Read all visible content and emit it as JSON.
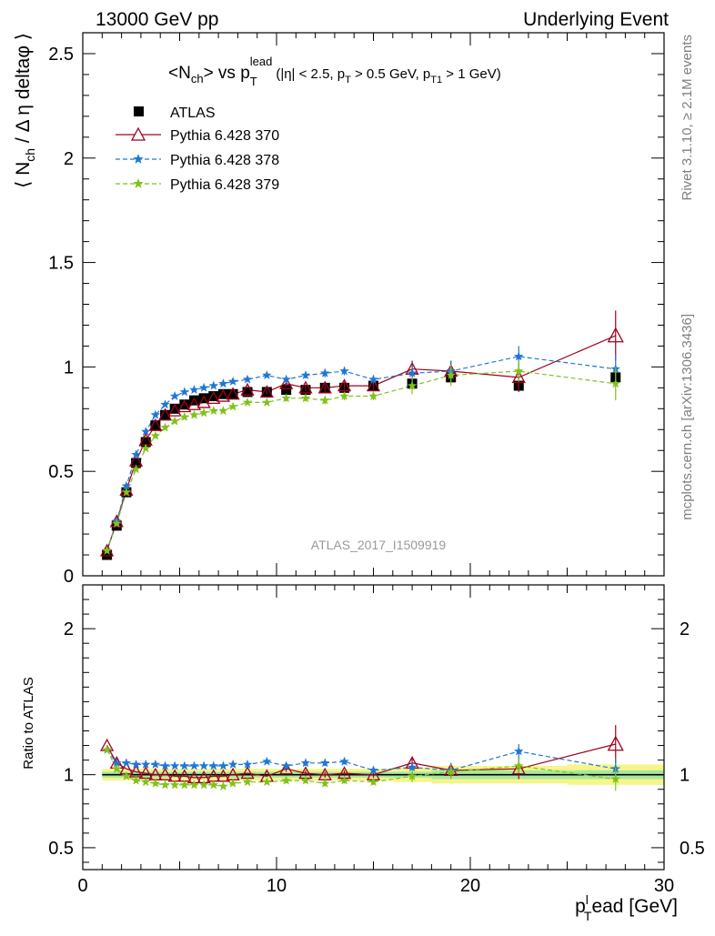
{
  "header": {
    "left": "13000 GeV pp",
    "right": "Underlying Event"
  },
  "side_text": {
    "rivet": "Rivet 3.1.10, ≥ 2.1M events",
    "mcplots": "mcplots.cern.ch [arXiv:1306.3436]"
  },
  "analysis_label": "ATLAS_2017_I1509919",
  "colors": {
    "atlas": "#000000",
    "p370": "#a0001e",
    "p378": "#1f77d4",
    "p379": "#80c21a",
    "band_inner": "#a6e8a0",
    "band_outer": "#f5f58a"
  },
  "chart_data": [
    {
      "panel": "main",
      "type": "scatter",
      "title_parts": {
        "lhs": "<N",
        "lhs_sub": "ch",
        "mid": "> vs p",
        "mid_sup": "lead",
        "mid_sub": "T",
        "cuts_a": "(|η| < 2.5, p",
        "cuts_sub1": "T",
        "cuts_b": " > 0.5 GeV, p",
        "cuts_sub2": "T1",
        "cuts_c": " > 1 GeV)"
      },
      "ylabel_parts": {
        "a": "⟨ N",
        "sub": "ch",
        "b": " / Δ η deltaφ ⟩"
      },
      "xlim": [
        0,
        30
      ],
      "ylim": [
        0,
        2.6
      ],
      "yticks": [
        0,
        0.5,
        1,
        1.5,
        2,
        2.5
      ],
      "ytick_labels": [
        "0",
        "0.5",
        "1",
        "1.5",
        "2",
        "2.5"
      ],
      "legend_position": "top-left",
      "series": [
        {
          "name": "ATLAS",
          "marker": "square",
          "x": [
            1.25,
            1.75,
            2.25,
            2.75,
            3.25,
            3.75,
            4.25,
            4.75,
            5.25,
            5.75,
            6.25,
            6.75,
            7.25,
            7.75,
            8.5,
            9.5,
            10.5,
            11.5,
            12.5,
            13.5,
            15.0,
            17.0,
            19.0,
            22.5,
            27.5
          ],
          "y": [
            0.1,
            0.24,
            0.4,
            0.54,
            0.64,
            0.72,
            0.77,
            0.8,
            0.82,
            0.84,
            0.85,
            0.86,
            0.87,
            0.87,
            0.88,
            0.88,
            0.89,
            0.89,
            0.9,
            0.9,
            0.91,
            0.92,
            0.95,
            0.91,
            0.95
          ]
        },
        {
          "name": "Pythia 6.428 370",
          "marker": "triangle",
          "x": [
            1.25,
            1.75,
            2.25,
            2.75,
            3.25,
            3.75,
            4.25,
            4.75,
            5.25,
            5.75,
            6.25,
            6.75,
            7.25,
            7.75,
            8.5,
            9.5,
            10.5,
            11.5,
            12.5,
            13.5,
            15.0,
            17.0,
            19.0,
            22.5,
            27.5
          ],
          "y": [
            0.12,
            0.26,
            0.41,
            0.55,
            0.65,
            0.72,
            0.77,
            0.79,
            0.81,
            0.82,
            0.83,
            0.85,
            0.86,
            0.87,
            0.89,
            0.88,
            0.92,
            0.9,
            0.9,
            0.91,
            0.91,
            0.99,
            0.98,
            0.95,
            1.15
          ],
          "err": [
            0.005,
            0.005,
            0.005,
            0.005,
            0.005,
            0.005,
            0.005,
            0.005,
            0.005,
            0.005,
            0.005,
            0.005,
            0.006,
            0.006,
            0.008,
            0.01,
            0.015,
            0.015,
            0.02,
            0.02,
            0.02,
            0.04,
            0.05,
            0.07,
            0.12
          ]
        },
        {
          "name": "Pythia 6.428 378",
          "marker": "star",
          "x": [
            1.25,
            1.75,
            2.25,
            2.75,
            3.25,
            3.75,
            4.25,
            4.75,
            5.25,
            5.75,
            6.25,
            6.75,
            7.25,
            7.75,
            8.5,
            9.5,
            10.5,
            11.5,
            12.5,
            13.5,
            15.0,
            17.0,
            19.0,
            22.5,
            27.5
          ],
          "y": [
            0.12,
            0.26,
            0.43,
            0.58,
            0.69,
            0.77,
            0.82,
            0.86,
            0.88,
            0.89,
            0.9,
            0.91,
            0.92,
            0.93,
            0.94,
            0.96,
            0.94,
            0.96,
            0.97,
            0.98,
            0.94,
            0.97,
            0.98,
            1.05,
            0.99
          ],
          "err": [
            0.005,
            0.005,
            0.005,
            0.005,
            0.005,
            0.005,
            0.005,
            0.005,
            0.005,
            0.005,
            0.006,
            0.006,
            0.006,
            0.006,
            0.008,
            0.01,
            0.015,
            0.015,
            0.02,
            0.02,
            0.02,
            0.04,
            0.05,
            0.05,
            0.07
          ]
        },
        {
          "name": "Pythia 6.428 379",
          "marker": "star",
          "x": [
            1.25,
            1.75,
            2.25,
            2.75,
            3.25,
            3.75,
            4.25,
            4.75,
            5.25,
            5.75,
            6.25,
            6.75,
            7.25,
            7.75,
            8.5,
            9.5,
            10.5,
            11.5,
            12.5,
            13.5,
            15.0,
            17.0,
            19.0,
            22.5,
            27.5
          ],
          "y": [
            0.12,
            0.25,
            0.4,
            0.51,
            0.61,
            0.67,
            0.71,
            0.74,
            0.76,
            0.77,
            0.78,
            0.79,
            0.79,
            0.81,
            0.83,
            0.83,
            0.85,
            0.85,
            0.84,
            0.86,
            0.86,
            0.91,
            0.96,
            0.98,
            0.92
          ],
          "err": [
            0.005,
            0.005,
            0.005,
            0.005,
            0.005,
            0.005,
            0.005,
            0.005,
            0.005,
            0.005,
            0.006,
            0.006,
            0.006,
            0.006,
            0.008,
            0.01,
            0.015,
            0.015,
            0.02,
            0.02,
            0.02,
            0.04,
            0.05,
            0.05,
            0.08
          ]
        }
      ]
    },
    {
      "panel": "ratio",
      "type": "line",
      "ylabel": "Ratio to ATLAS",
      "xlabel_parts": {
        "a": "p",
        "sup": "l",
        "sub": "T",
        "b": "ead [GeV]"
      },
      "xlim": [
        0,
        30
      ],
      "ylim": [
        0.35,
        2.3
      ],
      "xticks": [
        0,
        10,
        20,
        30
      ],
      "xtick_labels": [
        "0",
        "10",
        "20",
        "30"
      ],
      "yticks": [
        0.5,
        1,
        2
      ],
      "ytick_labels": [
        "0.5",
        "1",
        "2"
      ],
      "bins": [
        1.0,
        1.5,
        2.0,
        2.5,
        3.0,
        3.5,
        4.0,
        4.5,
        5.0,
        5.5,
        6.0,
        6.5,
        7.0,
        7.5,
        8.0,
        9.0,
        10.0,
        11.0,
        12.0,
        13.0,
        14.0,
        16.0,
        18.0,
        20.0,
        25.0,
        30.0
      ],
      "band_inner_halfwidth": [
        0.02,
        0.02,
        0.02,
        0.02,
        0.02,
        0.02,
        0.02,
        0.02,
        0.02,
        0.02,
        0.02,
        0.02,
        0.02,
        0.02,
        0.02,
        0.02,
        0.02,
        0.02,
        0.02,
        0.02,
        0.02,
        0.02,
        0.03,
        0.03,
        0.03
      ],
      "band_outer_halfwidth": [
        0.04,
        0.04,
        0.04,
        0.04,
        0.04,
        0.04,
        0.04,
        0.04,
        0.04,
        0.04,
        0.04,
        0.04,
        0.04,
        0.04,
        0.04,
        0.04,
        0.04,
        0.04,
        0.04,
        0.04,
        0.04,
        0.05,
        0.06,
        0.06,
        0.07
      ],
      "series": [
        {
          "name": "Pythia 6.428 370",
          "x": [
            1.25,
            1.75,
            2.25,
            2.75,
            3.25,
            3.75,
            4.25,
            4.75,
            5.25,
            5.75,
            6.25,
            6.75,
            7.25,
            7.75,
            8.5,
            9.5,
            10.5,
            11.5,
            12.5,
            13.5,
            15.0,
            17.0,
            19.0,
            22.5,
            27.5
          ],
          "y": [
            1.2,
            1.08,
            1.04,
            1.02,
            1.01,
            1.0,
            1.0,
            0.99,
            0.99,
            0.98,
            0.98,
            0.99,
            0.99,
            1.0,
            1.01,
            0.99,
            1.04,
            1.01,
            1.0,
            1.01,
            1.0,
            1.08,
            1.03,
            1.04,
            1.21
          ],
          "err": [
            0.01,
            0.01,
            0.01,
            0.01,
            0.01,
            0.01,
            0.01,
            0.01,
            0.01,
            0.01,
            0.01,
            0.01,
            0.01,
            0.01,
            0.01,
            0.01,
            0.02,
            0.02,
            0.02,
            0.02,
            0.02,
            0.04,
            0.05,
            0.07,
            0.13
          ]
        },
        {
          "name": "Pythia 6.428 378",
          "x": [
            1.25,
            1.75,
            2.25,
            2.75,
            3.25,
            3.75,
            4.25,
            4.75,
            5.25,
            5.75,
            6.25,
            6.75,
            7.25,
            7.75,
            8.5,
            9.5,
            10.5,
            11.5,
            12.5,
            13.5,
            15.0,
            17.0,
            19.0,
            22.5,
            27.5
          ],
          "y": [
            1.17,
            1.08,
            1.08,
            1.07,
            1.07,
            1.07,
            1.06,
            1.06,
            1.06,
            1.06,
            1.06,
            1.06,
            1.06,
            1.07,
            1.07,
            1.09,
            1.06,
            1.08,
            1.08,
            1.09,
            1.03,
            1.05,
            1.03,
            1.16,
            1.04
          ],
          "err": [
            0.01,
            0.01,
            0.01,
            0.01,
            0.01,
            0.01,
            0.01,
            0.01,
            0.01,
            0.01,
            0.01,
            0.01,
            0.01,
            0.01,
            0.01,
            0.01,
            0.02,
            0.02,
            0.02,
            0.02,
            0.02,
            0.04,
            0.05,
            0.05,
            0.07
          ]
        },
        {
          "name": "Pythia 6.428 379",
          "x": [
            1.25,
            1.75,
            2.25,
            2.75,
            3.25,
            3.75,
            4.25,
            4.75,
            5.25,
            5.75,
            6.25,
            6.75,
            7.25,
            7.75,
            8.5,
            9.5,
            10.5,
            11.5,
            12.5,
            13.5,
            15.0,
            17.0,
            19.0,
            22.5,
            27.5
          ],
          "y": [
            1.17,
            1.04,
            0.99,
            0.96,
            0.95,
            0.94,
            0.93,
            0.93,
            0.93,
            0.93,
            0.93,
            0.93,
            0.92,
            0.94,
            0.95,
            0.95,
            0.96,
            0.96,
            0.94,
            0.96,
            0.95,
            0.99,
            1.02,
            1.06,
            0.97
          ],
          "err": [
            0.01,
            0.01,
            0.01,
            0.01,
            0.01,
            0.01,
            0.01,
            0.01,
            0.01,
            0.01,
            0.01,
            0.01,
            0.01,
            0.01,
            0.01,
            0.01,
            0.02,
            0.02,
            0.02,
            0.02,
            0.02,
            0.04,
            0.05,
            0.05,
            0.08
          ]
        }
      ]
    }
  ]
}
